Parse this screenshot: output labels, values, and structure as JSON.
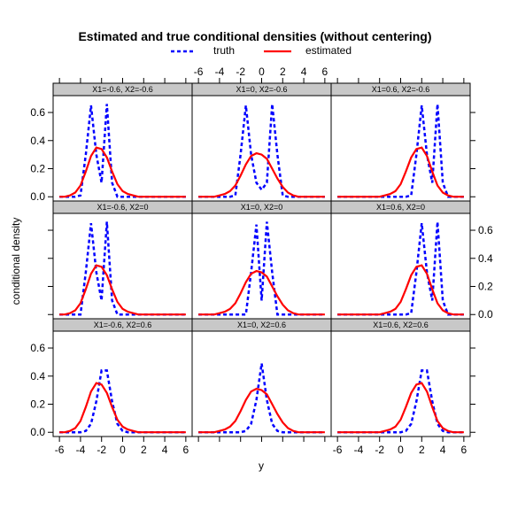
{
  "chart_data": {
    "type": "line",
    "title": "Estimated and true conditional densities (without centering)",
    "xlabel": "y",
    "ylabel": "conditional density",
    "xlim": [
      -6.6,
      6.6
    ],
    "ylim": [
      -0.03,
      0.72
    ],
    "x_ticks": [
      -6,
      -4,
      -2,
      0,
      2,
      4,
      6
    ],
    "y_ticks": [
      0.0,
      0.2,
      0.4,
      0.6
    ],
    "y_tick_labels": [
      "0.0",
      "0.2",
      "0.4",
      "0.6"
    ],
    "grid": false,
    "legend_position": "top",
    "series_meta": [
      {
        "name": "truth",
        "color": "#0000ff",
        "style": "dashed"
      },
      {
        "name": "estimated",
        "color": "#ff0000",
        "style": "solid"
      }
    ],
    "x": [
      -6.0,
      -5.5,
      -5.0,
      -4.5,
      -4.0,
      -3.5,
      -3.0,
      -2.5,
      -2.0,
      -1.5,
      -1.0,
      -0.5,
      0.0,
      0.5,
      1.0,
      1.5,
      2.0,
      2.5,
      3.0,
      3.5,
      4.0,
      4.5,
      5.0,
      5.5,
      6.0
    ],
    "panels": [
      {
        "strip": "X1=-0.6, X2=-0.6",
        "truth": [
          0.0,
          0.0,
          0.0,
          0.0,
          0.01,
          0.3,
          0.65,
          0.3,
          0.1,
          0.66,
          0.1,
          0.0,
          0.0,
          0.0,
          0.0,
          0.0,
          0.0,
          0.0,
          0.0,
          0.0,
          0.0,
          0.0,
          0.0,
          0.0,
          0.0
        ],
        "estimated": [
          0.0,
          0.0,
          0.01,
          0.03,
          0.08,
          0.18,
          0.29,
          0.35,
          0.34,
          0.28,
          0.18,
          0.09,
          0.04,
          0.02,
          0.01,
          0.0,
          0.0,
          0.0,
          0.0,
          0.0,
          0.0,
          0.0,
          0.0,
          0.0,
          0.0
        ]
      },
      {
        "strip": "X1=0, X2=-0.6",
        "truth": [
          0.0,
          0.0,
          0.0,
          0.0,
          0.0,
          0.0,
          0.0,
          0.01,
          0.3,
          0.65,
          0.3,
          0.1,
          0.05,
          0.1,
          0.66,
          0.3,
          0.01,
          0.0,
          0.0,
          0.0,
          0.0,
          0.0,
          0.0,
          0.0,
          0.0
        ],
        "estimated": [
          0.0,
          0.0,
          0.0,
          0.0,
          0.01,
          0.02,
          0.04,
          0.08,
          0.15,
          0.23,
          0.29,
          0.31,
          0.3,
          0.27,
          0.2,
          0.13,
          0.07,
          0.03,
          0.01,
          0.0,
          0.0,
          0.0,
          0.0,
          0.0,
          0.0
        ]
      },
      {
        "strip": "X1=0.6, X2=-0.6",
        "truth": [
          0.0,
          0.0,
          0.0,
          0.0,
          0.0,
          0.0,
          0.0,
          0.0,
          0.0,
          0.0,
          0.0,
          0.0,
          0.0,
          0.0,
          0.01,
          0.3,
          0.65,
          0.3,
          0.1,
          0.66,
          0.1,
          0.0,
          0.0,
          0.0,
          0.0
        ],
        "estimated": [
          0.0,
          0.0,
          0.0,
          0.0,
          0.0,
          0.0,
          0.0,
          0.0,
          0.0,
          0.01,
          0.02,
          0.04,
          0.09,
          0.18,
          0.28,
          0.34,
          0.35,
          0.29,
          0.18,
          0.08,
          0.03,
          0.01,
          0.0,
          0.0,
          0.0
        ]
      },
      {
        "strip": "X1=-0.6, X2=0",
        "truth": [
          0.0,
          0.0,
          0.0,
          0.0,
          0.0,
          0.3,
          0.65,
          0.3,
          0.1,
          0.66,
          0.1,
          0.0,
          0.0,
          0.0,
          0.0,
          0.0,
          0.0,
          0.0,
          0.0,
          0.0,
          0.0,
          0.0,
          0.0,
          0.0,
          0.0
        ],
        "estimated": [
          0.0,
          0.0,
          0.01,
          0.03,
          0.08,
          0.18,
          0.29,
          0.35,
          0.34,
          0.28,
          0.18,
          0.09,
          0.04,
          0.02,
          0.01,
          0.0,
          0.0,
          0.0,
          0.0,
          0.0,
          0.0,
          0.0,
          0.0,
          0.0,
          0.0
        ]
      },
      {
        "strip": "X1=0, X2=0",
        "truth": [
          0.0,
          0.0,
          0.0,
          0.0,
          0.0,
          0.0,
          0.0,
          0.0,
          0.0,
          0.0,
          0.3,
          0.64,
          0.1,
          0.66,
          0.3,
          0.0,
          0.0,
          0.0,
          0.0,
          0.0,
          0.0,
          0.0,
          0.0,
          0.0,
          0.0
        ],
        "estimated": [
          0.0,
          0.0,
          0.0,
          0.0,
          0.01,
          0.02,
          0.04,
          0.08,
          0.15,
          0.23,
          0.29,
          0.31,
          0.3,
          0.27,
          0.2,
          0.13,
          0.07,
          0.03,
          0.01,
          0.0,
          0.0,
          0.0,
          0.0,
          0.0,
          0.0
        ]
      },
      {
        "strip": "X1=0.6, X2=0",
        "truth": [
          0.0,
          0.0,
          0.0,
          0.0,
          0.0,
          0.0,
          0.0,
          0.0,
          0.0,
          0.0,
          0.0,
          0.0,
          0.0,
          0.0,
          0.01,
          0.3,
          0.65,
          0.3,
          0.1,
          0.66,
          0.1,
          0.0,
          0.0,
          0.0,
          0.0
        ],
        "estimated": [
          0.0,
          0.0,
          0.0,
          0.0,
          0.0,
          0.0,
          0.0,
          0.0,
          0.0,
          0.01,
          0.02,
          0.04,
          0.09,
          0.18,
          0.28,
          0.34,
          0.35,
          0.29,
          0.18,
          0.08,
          0.03,
          0.01,
          0.0,
          0.0,
          0.0
        ]
      },
      {
        "strip": "X1=-0.6, X2=0.6",
        "truth": [
          0.0,
          0.0,
          0.0,
          0.0,
          0.0,
          0.01,
          0.06,
          0.22,
          0.44,
          0.44,
          0.22,
          0.06,
          0.01,
          0.0,
          0.0,
          0.0,
          0.0,
          0.0,
          0.0,
          0.0,
          0.0,
          0.0,
          0.0,
          0.0,
          0.0
        ],
        "estimated": [
          0.0,
          0.0,
          0.01,
          0.03,
          0.08,
          0.18,
          0.29,
          0.35,
          0.34,
          0.28,
          0.18,
          0.09,
          0.04,
          0.02,
          0.01,
          0.0,
          0.0,
          0.0,
          0.0,
          0.0,
          0.0,
          0.0,
          0.0,
          0.0,
          0.0
        ]
      },
      {
        "strip": "X1=0, X2=0.6",
        "truth": [
          0.0,
          0.0,
          0.0,
          0.0,
          0.0,
          0.0,
          0.0,
          0.0,
          0.0,
          0.01,
          0.06,
          0.23,
          0.49,
          0.23,
          0.06,
          0.01,
          0.0,
          0.0,
          0.0,
          0.0,
          0.0,
          0.0,
          0.0,
          0.0,
          0.0
        ],
        "estimated": [
          0.0,
          0.0,
          0.0,
          0.0,
          0.01,
          0.02,
          0.04,
          0.08,
          0.15,
          0.23,
          0.29,
          0.31,
          0.3,
          0.27,
          0.2,
          0.13,
          0.07,
          0.03,
          0.01,
          0.0,
          0.0,
          0.0,
          0.0,
          0.0,
          0.0
        ]
      },
      {
        "strip": "X1=0.6, X2=0.6",
        "truth": [
          0.0,
          0.0,
          0.0,
          0.0,
          0.0,
          0.0,
          0.0,
          0.0,
          0.0,
          0.0,
          0.0,
          0.0,
          0.0,
          0.01,
          0.06,
          0.22,
          0.44,
          0.44,
          0.22,
          0.06,
          0.01,
          0.0,
          0.0,
          0.0,
          0.0
        ],
        "estimated": [
          0.0,
          0.0,
          0.0,
          0.0,
          0.0,
          0.0,
          0.0,
          0.0,
          0.0,
          0.01,
          0.02,
          0.04,
          0.09,
          0.18,
          0.28,
          0.34,
          0.35,
          0.29,
          0.18,
          0.08,
          0.03,
          0.01,
          0.0,
          0.0,
          0.0
        ]
      }
    ]
  }
}
